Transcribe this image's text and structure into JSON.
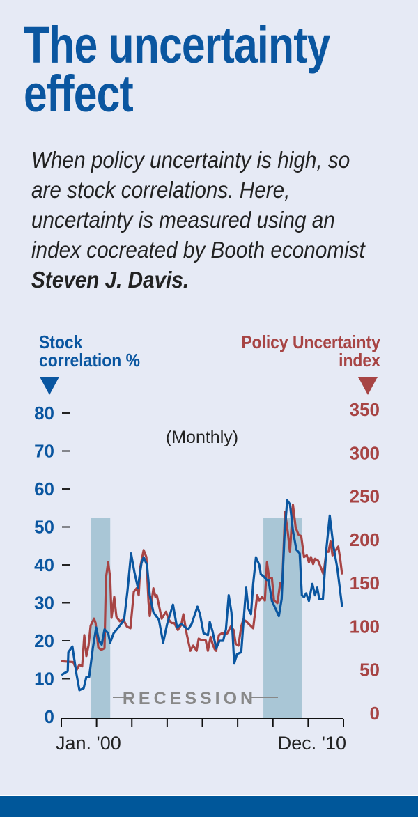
{
  "header": {
    "title": "The uncertainty effect",
    "dek_text": "When policy uncertainty is high, so are stock correlations. Here, uncertainty is measured using an index cocreated by Booth economist",
    "dek_bold": "Steven J. Davis."
  },
  "colors": {
    "background": "#e6eaf5",
    "title_blue": "#0a56a0",
    "stock_series": "#0a56a0",
    "policy_series": "#a74444",
    "recession_band": "#a9c6d6",
    "recession_label": "#888888",
    "bottom_bar": "#00579a"
  },
  "chart_data": {
    "type": "line",
    "title": "The uncertainty effect",
    "subtitle": "(Monthly)",
    "x_labels": {
      "start": "Jan. '00",
      "end": "Dec. '10"
    },
    "x_range_months": [
      0,
      132
    ],
    "x_unit": "months since Jan. 2000",
    "x_tick_count": 9,
    "y_left": {
      "label_line1": "Stock",
      "label_line2": "correlation %",
      "range": [
        0,
        80
      ],
      "ticks": [
        0,
        10,
        20,
        30,
        40,
        50,
        60,
        70,
        80
      ]
    },
    "y_right": {
      "label_line1": "Policy Uncertainty",
      "label_line2": "index",
      "range": [
        0,
        350
      ],
      "ticks": [
        0,
        50,
        100,
        150,
        200,
        250,
        300,
        350
      ]
    },
    "recession_label": "RECESSION",
    "recessions": [
      {
        "start_month": 14,
        "end_month": 23
      },
      {
        "start_month": 95,
        "end_month": 113
      }
    ],
    "grid": false,
    "series": [
      {
        "name": "Stock correlation %",
        "axis": "left",
        "points": [
          [
            0,
            11
          ],
          [
            3,
            12
          ],
          [
            3.3,
            17
          ],
          [
            5.2,
            18.5
          ],
          [
            7.2,
            11
          ],
          [
            8.5,
            7
          ],
          [
            10.5,
            7.5
          ],
          [
            11.8,
            10.5
          ],
          [
            13.1,
            10.5
          ],
          [
            14.8,
            18
          ],
          [
            16.4,
            23.5
          ],
          [
            17.7,
            20
          ],
          [
            19,
            19
          ],
          [
            20.3,
            23
          ],
          [
            22,
            22
          ],
          [
            23,
            19.5
          ],
          [
            24.6,
            22
          ],
          [
            27.5,
            24
          ],
          [
            29.5,
            25.5
          ],
          [
            31.1,
            33
          ],
          [
            32.8,
            43
          ],
          [
            34.4,
            38
          ],
          [
            36,
            34
          ],
          [
            37.7,
            40.5
          ],
          [
            38.7,
            42
          ],
          [
            40.3,
            40
          ],
          [
            41.6,
            32
          ],
          [
            43.3,
            27.5
          ],
          [
            45.9,
            25.5
          ],
          [
            47.9,
            19.5
          ],
          [
            49.8,
            24.5
          ],
          [
            52.5,
            29.5
          ],
          [
            54.4,
            23.5
          ],
          [
            56.4,
            24.5
          ],
          [
            58.4,
            23.5
          ],
          [
            59.7,
            23
          ],
          [
            61.3,
            24.5
          ],
          [
            64,
            29
          ],
          [
            65.2,
            27
          ],
          [
            66.9,
            22
          ],
          [
            68.9,
            21.5
          ],
          [
            69.8,
            25
          ],
          [
            71.1,
            22.5
          ],
          [
            72.8,
            18
          ],
          [
            74.4,
            20
          ],
          [
            76.1,
            20
          ],
          [
            77.4,
            23
          ],
          [
            78.7,
            32
          ],
          [
            80,
            27.5
          ],
          [
            81.3,
            14
          ],
          [
            82.6,
            16.5
          ],
          [
            84.6,
            17
          ],
          [
            85.6,
            24.5
          ],
          [
            86.9,
            34
          ],
          [
            87.9,
            28.5
          ],
          [
            89.2,
            27
          ],
          [
            90.2,
            35
          ],
          [
            91.5,
            42
          ],
          [
            93.1,
            40
          ],
          [
            93.8,
            37.5
          ],
          [
            95.1,
            37
          ],
          [
            96.7,
            36
          ],
          [
            97.4,
            36
          ],
          [
            99,
            30.5
          ],
          [
            100.7,
            28.5
          ],
          [
            102.3,
            26.5
          ],
          [
            103.6,
            31
          ],
          [
            104.9,
            47.5
          ],
          [
            106.2,
            57
          ],
          [
            107.5,
            56
          ],
          [
            108.9,
            49
          ],
          [
            110.5,
            44
          ],
          [
            112.1,
            43
          ],
          [
            113.1,
            32
          ],
          [
            114.1,
            31.5
          ],
          [
            115.1,
            32.5
          ],
          [
            116.4,
            30.5
          ],
          [
            118,
            35
          ],
          [
            119.3,
            32
          ],
          [
            120.3,
            34
          ],
          [
            121.3,
            31
          ],
          [
            123,
            31
          ],
          [
            124.6,
            44
          ],
          [
            126.2,
            53
          ],
          [
            127.9,
            45
          ],
          [
            129.8,
            39
          ],
          [
            132,
            29
          ]
        ]
      },
      {
        "name": "Policy Uncertainty index",
        "axis": "right",
        "points": [
          [
            0,
            64
          ],
          [
            5.6,
            63
          ],
          [
            7.2,
            54
          ],
          [
            8.5,
            60
          ],
          [
            9.8,
            58
          ],
          [
            10.8,
            94
          ],
          [
            11.8,
            70
          ],
          [
            12.8,
            82
          ],
          [
            13.8,
            105
          ],
          [
            15.4,
            113
          ],
          [
            16.1,
            108
          ],
          [
            17.4,
            80
          ],
          [
            18.7,
            77
          ],
          [
            20.3,
            79
          ],
          [
            21,
            160
          ],
          [
            22,
            178
          ],
          [
            23,
            160
          ],
          [
            23.6,
            114
          ],
          [
            24.9,
            138
          ],
          [
            25.9,
            115
          ],
          [
            27.5,
            110
          ],
          [
            29.2,
            112
          ],
          [
            30.8,
            104
          ],
          [
            32.5,
            102
          ],
          [
            34.1,
            144
          ],
          [
            35.4,
            148
          ],
          [
            36.4,
            140
          ],
          [
            37.1,
            172
          ],
          [
            38.7,
            192
          ],
          [
            40,
            184
          ],
          [
            41,
            132
          ],
          [
            41.6,
            116
          ],
          [
            43.3,
            148
          ],
          [
            44.3,
            138
          ],
          [
            44.9,
            140
          ],
          [
            47.2,
            113
          ],
          [
            49.2,
            121
          ],
          [
            50.5,
            112
          ],
          [
            51.8,
            108
          ],
          [
            53.1,
            108
          ],
          [
            54.8,
            100
          ],
          [
            56.4,
            106
          ],
          [
            57.4,
            118
          ],
          [
            59,
            95
          ],
          [
            60.7,
            76
          ],
          [
            62,
            82
          ],
          [
            63.6,
            76
          ],
          [
            64.6,
            90
          ],
          [
            66.2,
            88
          ],
          [
            67.9,
            88
          ],
          [
            68.9,
            76
          ],
          [
            70.2,
            92
          ],
          [
            71.1,
            84
          ],
          [
            72.1,
            78
          ],
          [
            72.8,
            76
          ],
          [
            74.1,
            94
          ],
          [
            75.4,
            96
          ],
          [
            76.7,
            96
          ],
          [
            78,
            96
          ],
          [
            79.7,
            104
          ],
          [
            81,
            100
          ],
          [
            82,
            84
          ],
          [
            83.3,
            82
          ],
          [
            84.6,
            104
          ],
          [
            85.6,
            112
          ],
          [
            86.9,
            110
          ],
          [
            88.5,
            106
          ],
          [
            90.2,
            102
          ],
          [
            92.1,
            140
          ],
          [
            93.1,
            134
          ],
          [
            94.4,
            138
          ],
          [
            95.7,
            134
          ],
          [
            96.7,
            178
          ],
          [
            97.7,
            160
          ],
          [
            99,
            160
          ],
          [
            100,
            134
          ],
          [
            101.6,
            131
          ],
          [
            102.9,
            154
          ],
          [
            103.9,
            154
          ],
          [
            105.2,
            236
          ],
          [
            106.6,
            210
          ],
          [
            107.5,
            190
          ],
          [
            108.9,
            244
          ],
          [
            110.2,
            218
          ],
          [
            111.5,
            210
          ],
          [
            112.8,
            208
          ],
          [
            114.1,
            184
          ],
          [
            115.4,
            186
          ],
          [
            116.4,
            178
          ],
          [
            117.4,
            184
          ],
          [
            118.4,
            176
          ],
          [
            119.3,
            182
          ],
          [
            120.7,
            180
          ],
          [
            122,
            172
          ],
          [
            123.3,
            164
          ],
          [
            124.6,
            190
          ],
          [
            125.6,
            190
          ],
          [
            126.6,
            202
          ],
          [
            127.5,
            186
          ],
          [
            128.5,
            190
          ],
          [
            130.2,
            196
          ],
          [
            131.1,
            182
          ],
          [
            132,
            164
          ]
        ]
      }
    ]
  }
}
